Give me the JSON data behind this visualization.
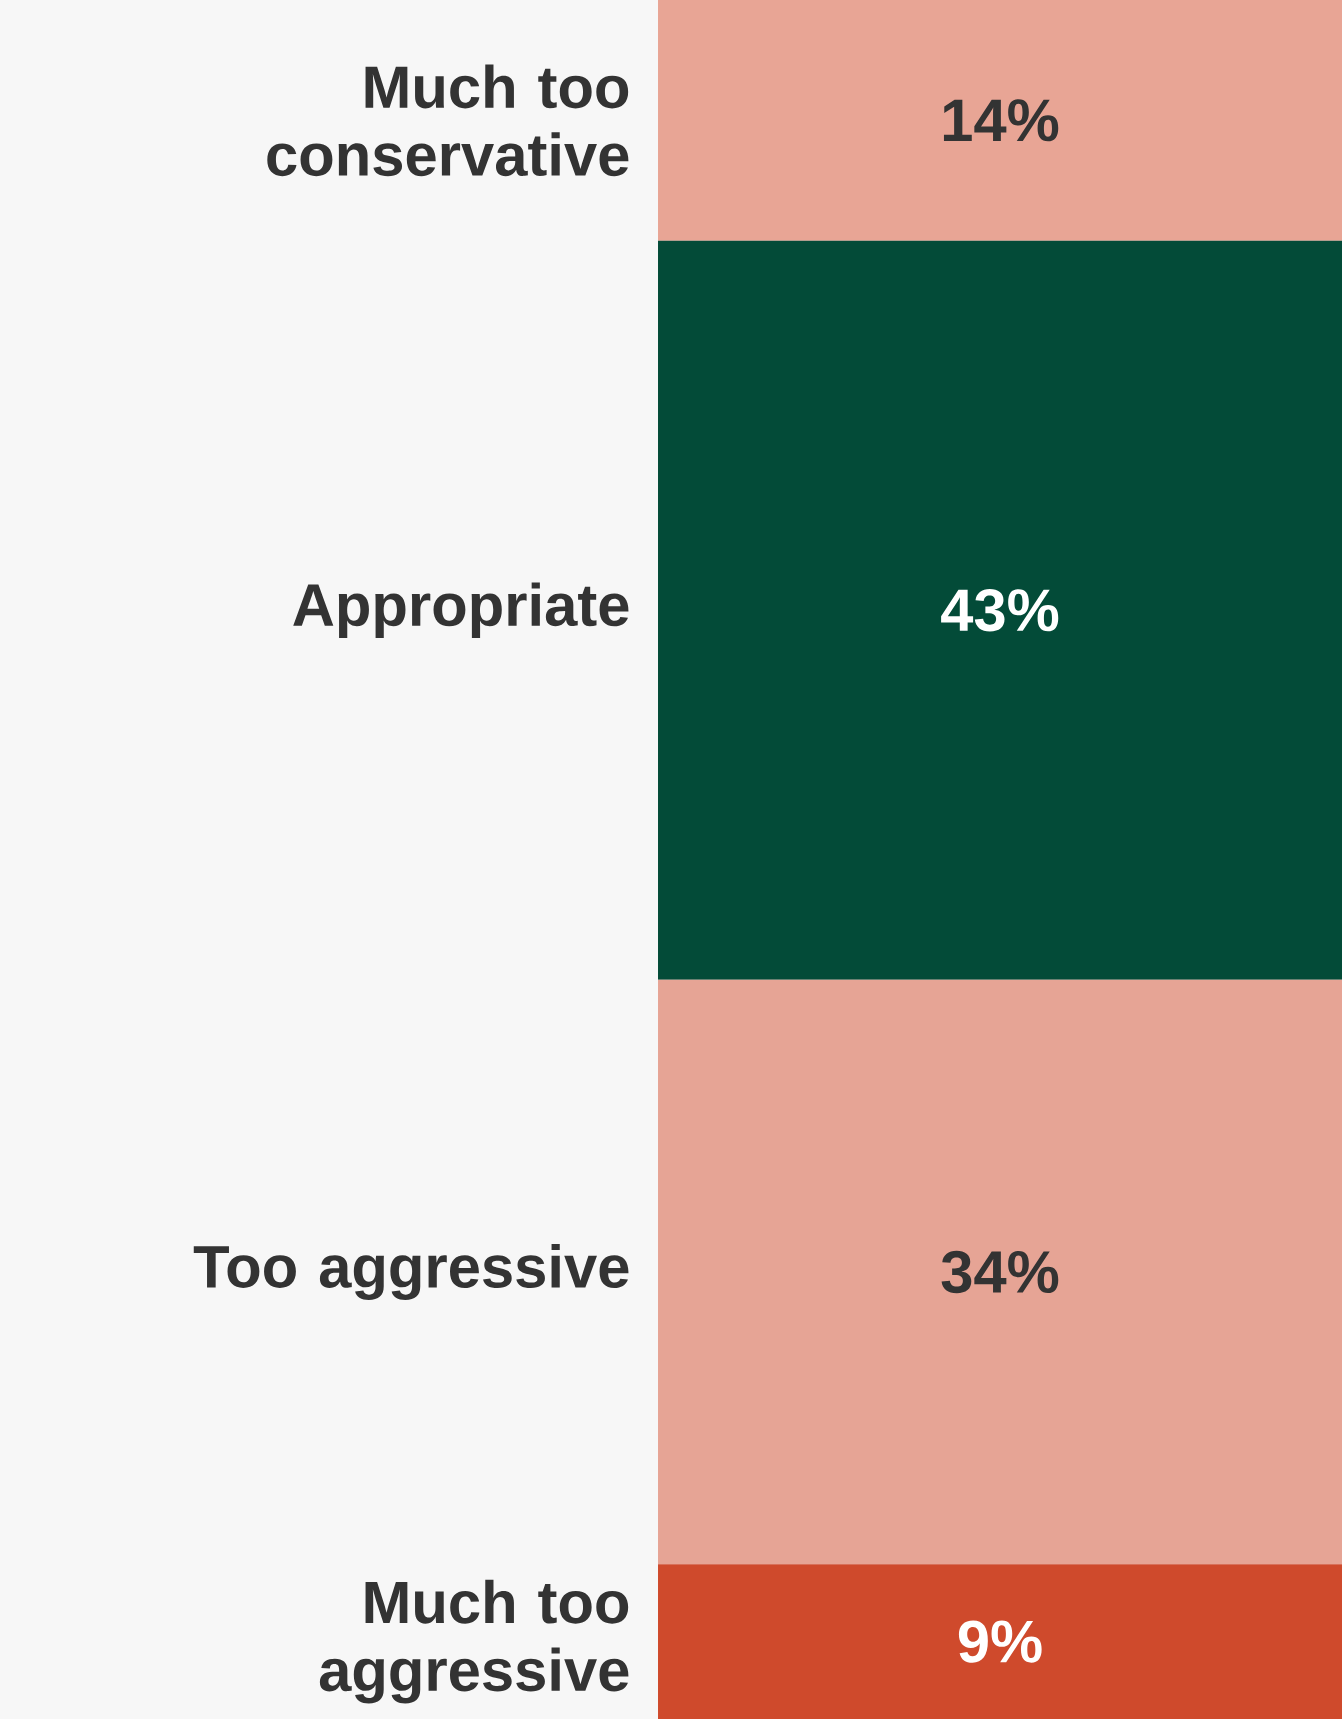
{
  "chart_data": {
    "type": "bar",
    "stacked": true,
    "categories": [
      null
    ],
    "series": [
      {
        "name": "Much too aggressive",
        "color": "#cf4a2c",
        "values": [
          9
        ],
        "value_labels": [
          "9%"
        ]
      },
      {
        "name": "Too aggressive",
        "color": "#e6a495",
        "values": [
          34
        ],
        "value_labels": [
          "34%"
        ]
      },
      {
        "name": "Appropriate",
        "color": "#034b38",
        "values": [
          43
        ],
        "value_labels": [
          "43%"
        ]
      },
      {
        "name": "Much too conservative",
        "color": "#e8a595",
        "values": [
          14
        ],
        "value_labels": [
          "14%"
        ]
      }
    ]
  }
}
